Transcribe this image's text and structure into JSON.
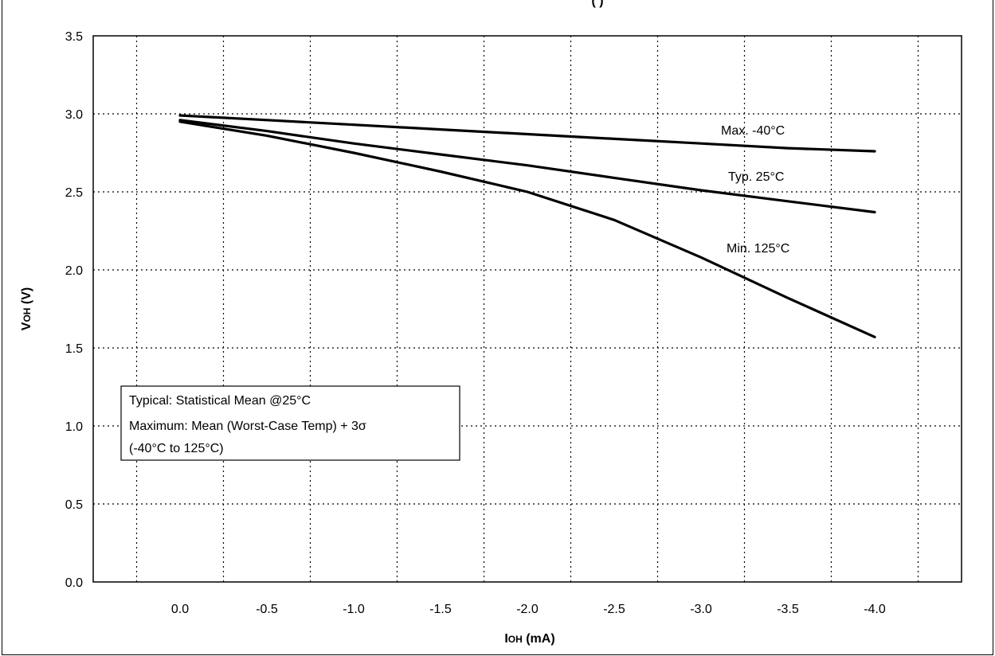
{
  "chart_data": {
    "type": "line",
    "title_partial": "(     )",
    "xlabel": "IOH (mA)",
    "ylabel": "VOH (V)",
    "xlim": [
      0.5,
      -4.5
    ],
    "ylim": [
      0.0,
      3.5
    ],
    "x_ticks": [
      "0.0",
      "-0.5",
      "-1.0",
      "-1.5",
      "-2.0",
      "-2.5",
      "-3.0",
      "-3.5",
      "-4.0"
    ],
    "y_ticks": [
      "0.0",
      "0.5",
      "1.0",
      "1.5",
      "2.0",
      "2.5",
      "3.0",
      "3.5"
    ],
    "grid": true,
    "series": [
      {
        "name": "Max. -40°C",
        "x": [
          0.0,
          -0.5,
          -1.0,
          -1.5,
          -2.0,
          -2.5,
          -3.0,
          -3.5,
          -4.0
        ],
        "y": [
          2.99,
          2.96,
          2.93,
          2.9,
          2.87,
          2.84,
          2.81,
          2.78,
          2.76
        ]
      },
      {
        "name": "Typ. 25°C",
        "x": [
          0.0,
          -0.5,
          -1.0,
          -1.5,
          -2.0,
          -2.5,
          -3.0,
          -3.5,
          -4.0
        ],
        "y": [
          2.96,
          2.89,
          2.81,
          2.74,
          2.67,
          2.59,
          2.51,
          2.44,
          2.37
        ]
      },
      {
        "name": "Min. 125°C",
        "x": [
          0.0,
          -0.5,
          -1.0,
          -1.5,
          -2.0,
          -2.5,
          -3.0,
          -3.5,
          -4.0
        ],
        "y": [
          2.95,
          2.86,
          2.75,
          2.63,
          2.5,
          2.32,
          2.08,
          1.82,
          1.57
        ]
      }
    ],
    "annotation": {
      "lines": [
        "Typical: Statistical Mean @25°C",
        "Maximum: Mean (Worst-Case Temp) + 3σ",
        "(-40°C to 125°C)"
      ]
    },
    "colors": {
      "line": "#000000",
      "grid": "#000000",
      "background": "#ffffff"
    }
  }
}
